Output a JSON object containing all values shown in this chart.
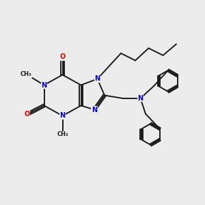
{
  "bg_color": "#ececec",
  "bond_color": "#1a1a1a",
  "n_color": "#0000cc",
  "o_color": "#dd0000",
  "font_size_atom": 7.0,
  "font_size_methyl": 6.0,
  "line_width": 1.4,
  "figsize": [
    3.0,
    3.0
  ],
  "dpi": 100,
  "xlim": [
    0,
    10
  ],
  "ylim": [
    0,
    10
  ]
}
